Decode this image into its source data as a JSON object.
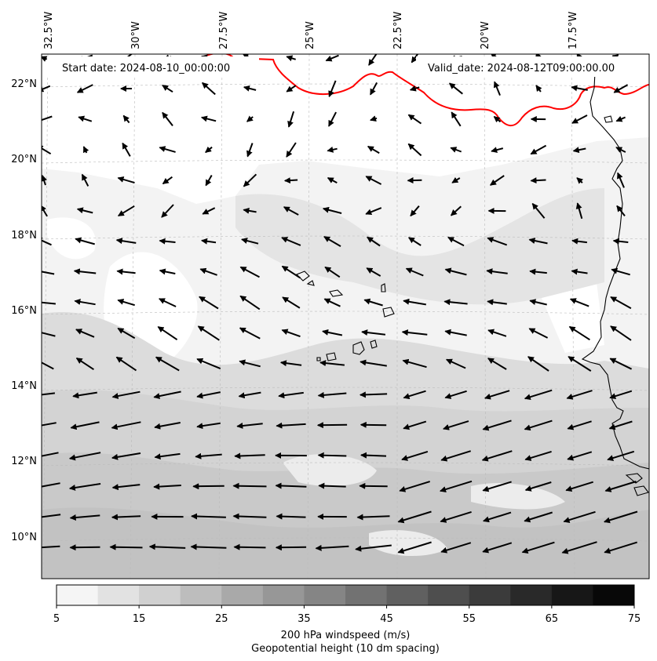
{
  "map": {
    "start_label": "Start date: 2024-08-10_00:00:00",
    "valid_label": "Valid_date: 2024-08-12T09:00:00.00",
    "lon_labels": [
      "32.5°W",
      "30°W",
      "27.5°W",
      "25°W",
      "22.5°W",
      "20°W",
      "17.5°W"
    ],
    "lat_labels": [
      "22°N",
      "20°N",
      "18°N",
      "16°N",
      "14°N",
      "12°N",
      "10°N"
    ],
    "lon_range": [
      -33,
      -15.5
    ],
    "lat_range": [
      8.9,
      22.7
    ]
  },
  "colorbar": {
    "ticks": [
      "5",
      "15",
      "25",
      "35",
      "45",
      "55",
      "65",
      "75"
    ],
    "values": [
      5,
      10,
      15,
      20,
      25,
      30,
      35,
      40,
      45,
      50,
      55,
      60,
      65,
      70,
      75
    ],
    "colors": [
      "#f5f5f5",
      "#e2e2e2",
      "#d0d0d0",
      "#bdbdbd",
      "#a9a9a9",
      "#979797",
      "#858585",
      "#727272",
      "#606060",
      "#4e4e4e",
      "#3b3b3b",
      "#292929",
      "#171717",
      "#080808"
    ],
    "title": "200 hPa windspeed (m/s)",
    "subtitle": "Geopotential height (10 dm spacing)",
    "subtitle_color": "#ff0000"
  },
  "contour_color": "#ff0000",
  "coast_color": "#000000"
}
